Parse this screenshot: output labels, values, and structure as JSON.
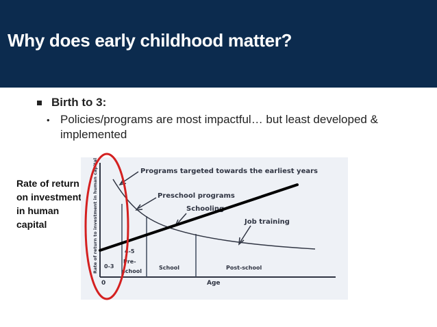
{
  "slide": {
    "title": "Why does early childhood matter?"
  },
  "bullets": {
    "level1": "Birth to 3:",
    "level2": "Policies/programs are most impactful… but least developed & implemented"
  },
  "side_label": "Rate of return on investment in human capital",
  "figure": {
    "y_axis_label": "Rate of return to investment in human capital",
    "x_axis_label": "Age",
    "origin_label": "0",
    "annotations": {
      "earliest": "Programs targeted towards the earliest years",
      "preschool": "Preschool programs",
      "schooling": "Schooling",
      "job": "Job training"
    },
    "segments": {
      "s1": "0-3",
      "s2_line1": "4-5",
      "s2_line2": "Pre-",
      "s2_line3": "school",
      "s3": "School",
      "s4": "Post-school"
    }
  },
  "colors": {
    "banner": "#0c2b4e",
    "highlight_ellipse": "#d42020",
    "trend_line": "#000000",
    "curve": "#2f3442"
  }
}
